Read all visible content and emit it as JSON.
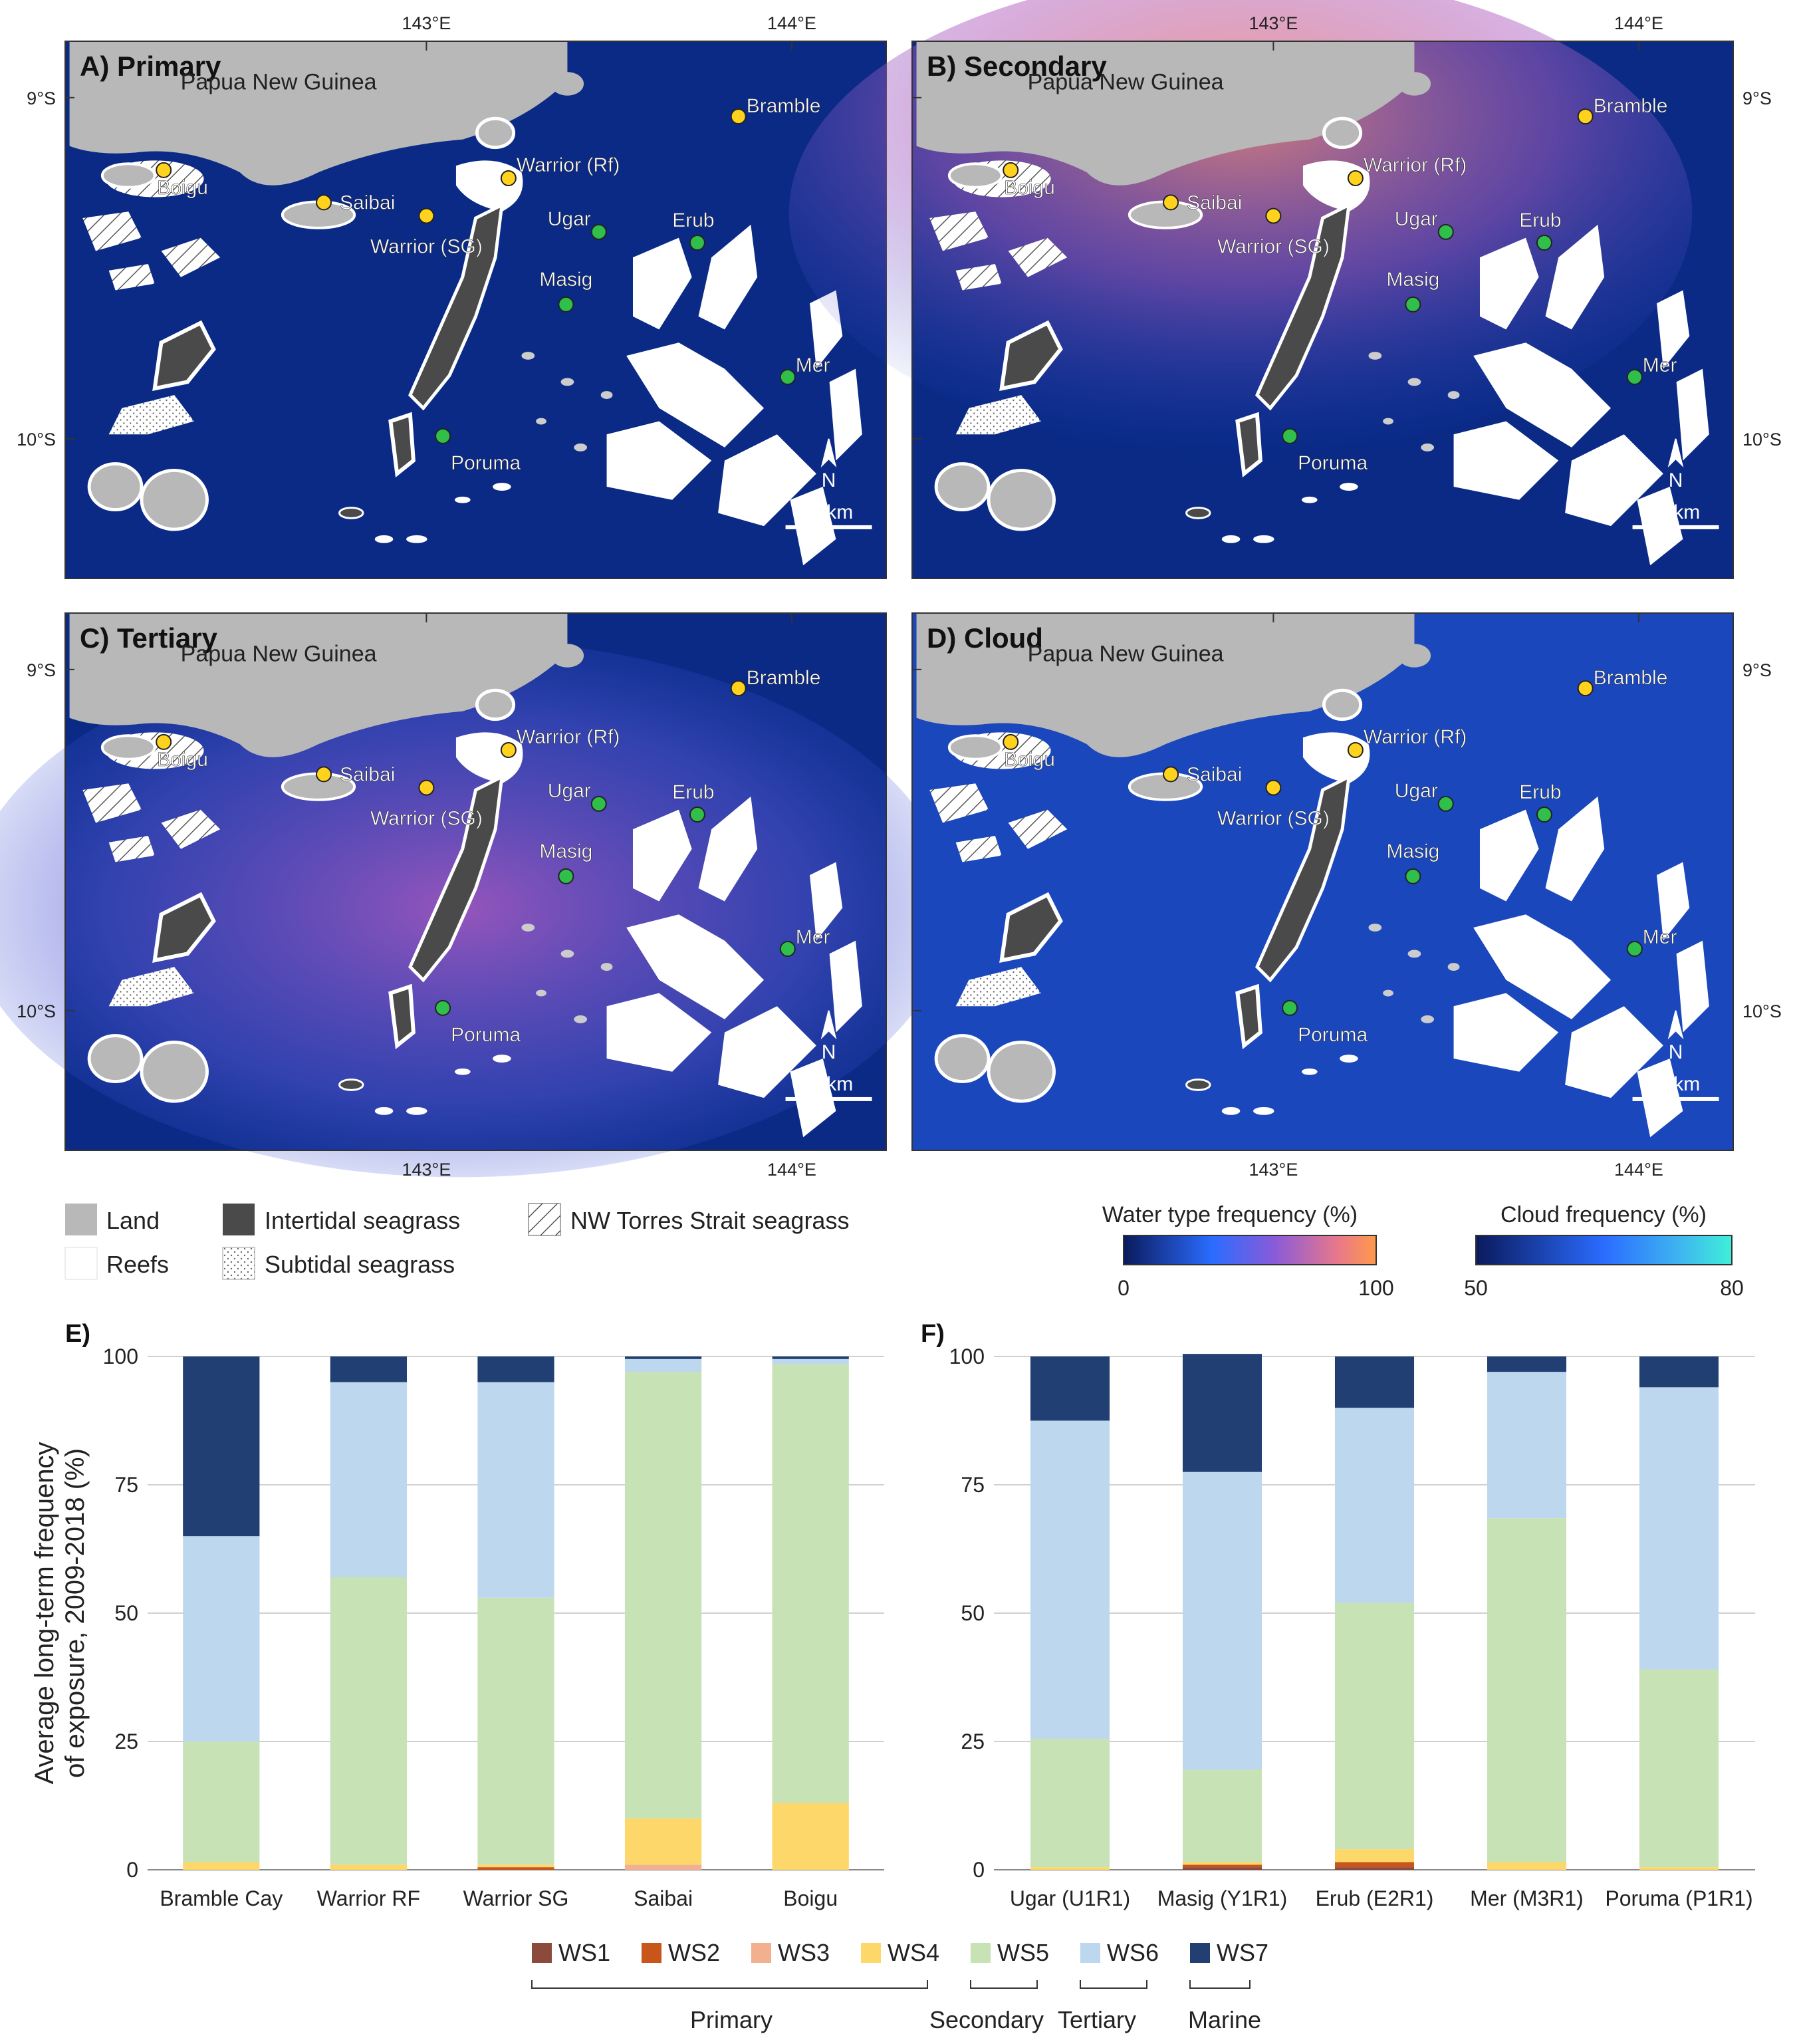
{
  "figure": {
    "panels": [
      {
        "id": "A",
        "title": "A) Primary"
      },
      {
        "id": "B",
        "title": "B) Secondary"
      },
      {
        "id": "C",
        "title": "C) Tertiary"
      },
      {
        "id": "D",
        "title": "D) Cloud"
      }
    ],
    "top_ticks": [
      "143°E",
      "144°E"
    ],
    "bottom_ticks": [
      "143°E",
      "144°E"
    ],
    "left_ticks": [
      "9°S",
      "10°S"
    ],
    "right_ticks": [
      "9°S",
      "10°S"
    ],
    "map_labels": {
      "country": "Papua New Guinea",
      "yellow_sites": [
        "Bramble",
        "Boigu",
        "Saibai",
        "Warrior (Rf)",
        "Warrior (SG)"
      ],
      "green_sites": [
        "Ugar",
        "Erub",
        "Masig",
        "Mer",
        "Poruma"
      ],
      "north": "N",
      "scale": "20km"
    },
    "legend": {
      "land": "Land",
      "reefs": "Reefs",
      "intertidal": "Intertidal seagrass",
      "subtidal": "Subtidal seagrass",
      "nw": "NW Torres Strait seagrass"
    },
    "colorbars": [
      {
        "title": "Water type frequency (%)",
        "min": "0",
        "max": "100"
      },
      {
        "title": "Cloud frequency (%)",
        "min": "50",
        "max": "80"
      }
    ],
    "colors": {
      "ocean": "#0a2a86",
      "land": "#b8b8b8",
      "intertidal": "#4a4a4a",
      "yellow_site": "#ffd21e",
      "green_site": "#2fbf4a"
    }
  },
  "chart_data": [
    {
      "type": "bar",
      "panel": "E)",
      "ylabel": "Average long-term frequency of exposure, 2009-2018 (%)",
      "ylabel_lines": [
        "Average long-term frequency",
        "of exposure, 2009-2018 (%)"
      ],
      "ylim": [
        0,
        100
      ],
      "yticks": [
        "0",
        "25",
        "50",
        "75",
        "100"
      ],
      "categories": [
        "Bramble Cay",
        "Warrior RF",
        "Warrior SG",
        "Saibai",
        "Boigu"
      ],
      "series": [
        {
          "name": "WS1",
          "color": "#8b4a3c",
          "values": [
            0,
            0,
            0,
            0,
            0
          ]
        },
        {
          "name": "WS2",
          "color": "#c8561b",
          "values": [
            0,
            0,
            0.5,
            0,
            0
          ]
        },
        {
          "name": "WS3",
          "color": "#f2b08e",
          "values": [
            0,
            0,
            0,
            1,
            0
          ]
        },
        {
          "name": "WS4",
          "color": "#fdd76a",
          "values": [
            1.5,
            1,
            0.5,
            9,
            13
          ]
        },
        {
          "name": "WS5",
          "color": "#c7e2b4",
          "values": [
            23.5,
            56,
            52,
            87,
            85.5
          ]
        },
        {
          "name": "WS6",
          "color": "#bdd7ee",
          "values": [
            40,
            38,
            42,
            2.5,
            1
          ]
        },
        {
          "name": "WS7",
          "color": "#213f73",
          "values": [
            35,
            5,
            5,
            0.5,
            0.5
          ]
        }
      ]
    },
    {
      "type": "bar",
      "panel": "F)",
      "ylim": [
        0,
        100
      ],
      "yticks": [
        "0",
        "25",
        "50",
        "75",
        "100"
      ],
      "categories": [
        "Ugar (U1R1)",
        "Masig (Y1R1)",
        "Erub (E2R1)",
        "Mer (M3R1)",
        "Poruma (P1R1)"
      ],
      "series": [
        {
          "name": "WS1",
          "color": "#8b4a3c",
          "values": [
            0,
            0.5,
            0.5,
            0,
            0
          ]
        },
        {
          "name": "WS2",
          "color": "#c8561b",
          "values": [
            0,
            0.5,
            1,
            0,
            0
          ]
        },
        {
          "name": "WS3",
          "color": "#f2b08e",
          "values": [
            0,
            0,
            0,
            0,
            0
          ]
        },
        {
          "name": "WS4",
          "color": "#fdd76a",
          "values": [
            0.5,
            0.5,
            2.5,
            1.5,
            0.5
          ]
        },
        {
          "name": "WS5",
          "color": "#c7e2b4",
          "values": [
            25,
            18,
            48,
            67,
            38.5
          ]
        },
        {
          "name": "WS6",
          "color": "#bdd7ee",
          "values": [
            62,
            58,
            38,
            28.5,
            55
          ]
        },
        {
          "name": "WS7",
          "color": "#213f73",
          "values": [
            12.5,
            23,
            10,
            3,
            6
          ]
        }
      ]
    }
  ],
  "bottom_legend": {
    "items": [
      {
        "name": "WS1",
        "color": "#8b4a3c"
      },
      {
        "name": "WS2",
        "color": "#c8561b"
      },
      {
        "name": "WS3",
        "color": "#f2b08e"
      },
      {
        "name": "WS4",
        "color": "#fdd76a"
      },
      {
        "name": "WS5",
        "color": "#c7e2b4"
      },
      {
        "name": "WS6",
        "color": "#bdd7ee"
      },
      {
        "name": "WS7",
        "color": "#213f73"
      }
    ],
    "groups": [
      "Primary",
      "Secondary",
      "Tertiary",
      "Marine"
    ]
  }
}
